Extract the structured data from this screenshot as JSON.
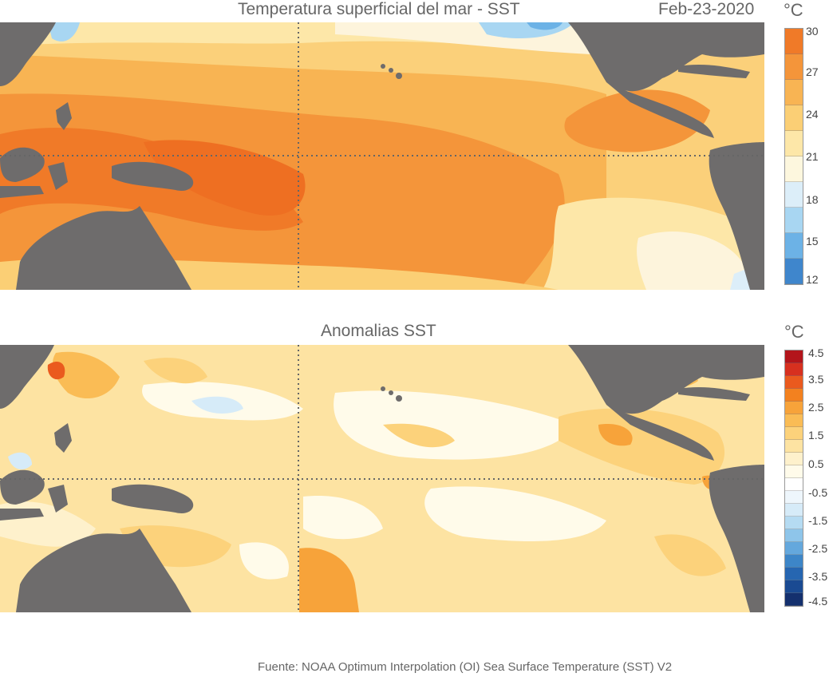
{
  "top_panel": {
    "title": "Temperatura superficial del mar - SST",
    "date": "Feb-23-2020",
    "unit": "°C",
    "colorbar_labels": [
      "30",
      "27",
      "24",
      "21",
      "18",
      "15",
      "12"
    ],
    "colorbar_colors": [
      "#f07a28",
      "#f4953a",
      "#f8b453",
      "#fbcf75",
      "#fde7a8",
      "#fdf7de",
      "#dceef9",
      "#a8d6f2",
      "#6cb2e6",
      "#3f86cc"
    ]
  },
  "bottom_panel": {
    "title": "Anomalias SST",
    "unit": "°C",
    "colorbar_labels": [
      "4.5",
      "3.5",
      "2.5",
      "1.5",
      "0.5",
      "-0.5",
      "-1.5",
      "-2.5",
      "-3.5",
      "-4.5"
    ],
    "colorbar_colors": [
      "#b3151b",
      "#d7301f",
      "#ea5a1e",
      "#f3811f",
      "#f7a33a",
      "#fabc55",
      "#fcd27b",
      "#fde3a2",
      "#fef1cc",
      "#fffbea",
      "#ffffff",
      "#eef6fc",
      "#d6ebf8",
      "#b5dbf2",
      "#8ec5ea",
      "#64a8dd",
      "#3d86c8",
      "#2666b1",
      "#1a4a92",
      "#14306e"
    ]
  },
  "colors": {
    "land": "#6e6c6c",
    "grid": "#666666"
  },
  "footer": {
    "source": "Fuente: NOAA Optimum Interpolation (OI) Sea Surface Temperature (SST) V2"
  }
}
